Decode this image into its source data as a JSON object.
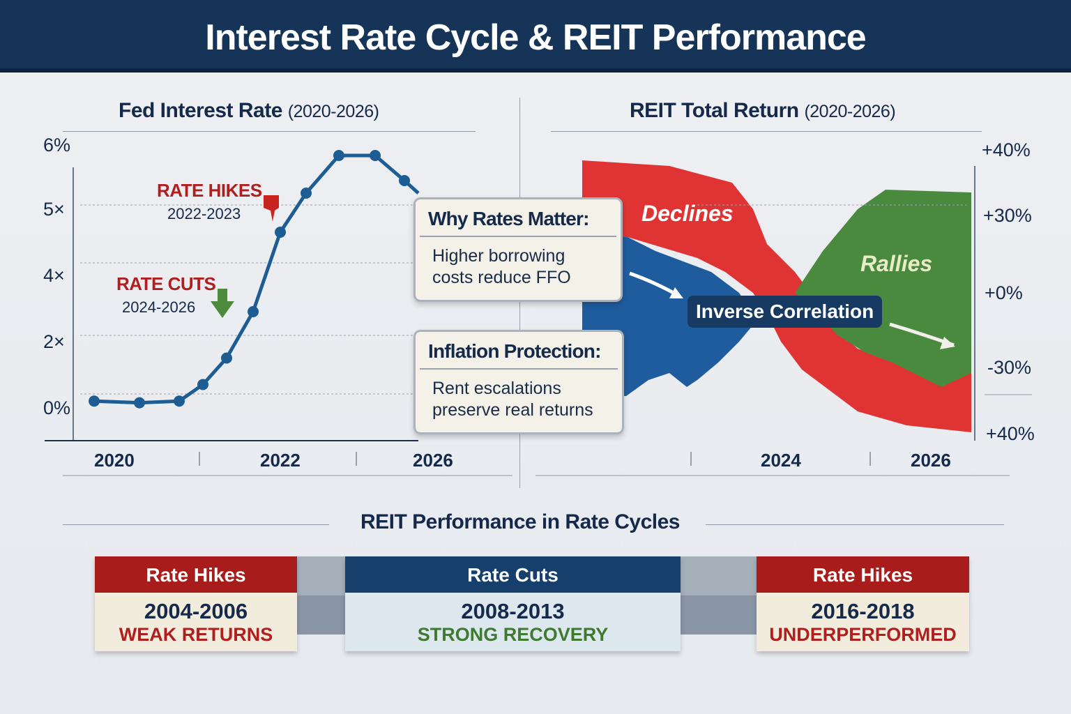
{
  "title": "Interest Rate Cycle & REIT Performance",
  "colors": {
    "navy": "#163358",
    "red": "#b01e1e",
    "green": "#4c8a3c",
    "blue": "#1f5fa0",
    "area_red": "#e03434",
    "area_blue": "#1f5c9e",
    "area_green": "#4a8a3e"
  },
  "chart_data": [
    {
      "type": "line",
      "title": "Fed Interest Rate",
      "title_suffix": "(2020-2026)",
      "y_ticks": [
        {
          "value": 6,
          "label": "6%"
        },
        {
          "value": 5,
          "label": "5×"
        },
        {
          "value": 4,
          "label": "4×"
        },
        {
          "value": 2,
          "label": "2×"
        },
        {
          "value": 0,
          "label": "0%"
        }
      ],
      "x_labels": [
        "2020",
        "2022",
        "2026"
      ],
      "values": [
        0.1,
        0.05,
        0.1,
        0.6,
        1.4,
        2.8,
        4.6,
        5.2,
        5.8,
        5.8,
        5.4,
        5.2
      ],
      "annotations": [
        {
          "title": "RATE HIKES",
          "sub": "2022-2023"
        },
        {
          "title": "RATE CUTS",
          "sub": "2024-2026"
        }
      ]
    },
    {
      "type": "area",
      "title": "REIT Total Return",
      "title_suffix": "(2020-2026)",
      "y_ticks": [
        "+40%",
        "+30%",
        "+0%",
        "-30%",
        "+40%"
      ],
      "x_labels": [
        "2024",
        "2026"
      ],
      "labels": {
        "declines": "Declines",
        "rallies": "Rallies",
        "correlation": "Inverse Correlation"
      }
    }
  ],
  "cards": [
    {
      "title": "Why Rates Matter:",
      "text": "Higher borrowing costs reduce FFO"
    },
    {
      "title": "Inflation Protection:",
      "text": "Rent escalations preserve real returns"
    }
  ],
  "cycles": {
    "title": "REIT Performance in Rate Cycles",
    "items": [
      {
        "label": "Rate Hikes",
        "years": "2004-2006",
        "result": "WEAK RETURNS"
      },
      {
        "label": "Rate Cuts",
        "years": "2008-2013",
        "result": "STRONG RECOVERY"
      },
      {
        "label": "Rate Hikes",
        "years": "2016-2018",
        "result": "UNDERPERFORMED"
      }
    ]
  }
}
